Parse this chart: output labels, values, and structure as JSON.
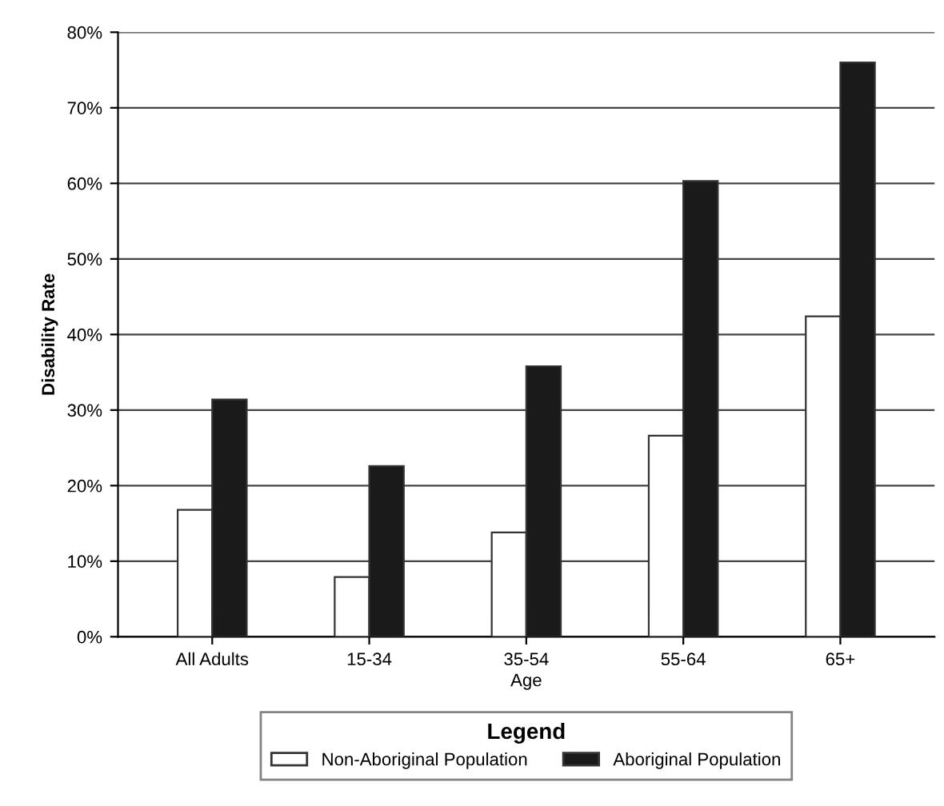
{
  "chart_data": {
    "type": "bar",
    "xlabel": "Age",
    "ylabel": "Disability Rate",
    "legend_title": "Legend",
    "categories": [
      "All Adults",
      "15-34",
      "35-54",
      "55-64",
      "65+"
    ],
    "series": [
      {
        "name": "Non-Aboriginal Population",
        "color": "#ffffff",
        "values": [
          16.8,
          7.9,
          13.8,
          26.6,
          42.4
        ]
      },
      {
        "name": "Aboriginal Population",
        "color": "#1a1a1a",
        "values": [
          31.4,
          22.6,
          35.8,
          60.3,
          76.0
        ]
      }
    ],
    "ylim": [
      0,
      80
    ],
    "yticks": [
      {
        "value": 0,
        "label": "0%"
      },
      {
        "value": 10,
        "label": "10%"
      },
      {
        "value": 20,
        "label": "20%"
      },
      {
        "value": 30,
        "label": "30%"
      },
      {
        "value": 40,
        "label": "40%"
      },
      {
        "value": 50,
        "label": "50%"
      },
      {
        "value": 60,
        "label": "60%"
      },
      {
        "value": 70,
        "label": "70%"
      },
      {
        "value": 80,
        "label": "80%"
      }
    ],
    "grid": "y",
    "legend": "bottom"
  }
}
